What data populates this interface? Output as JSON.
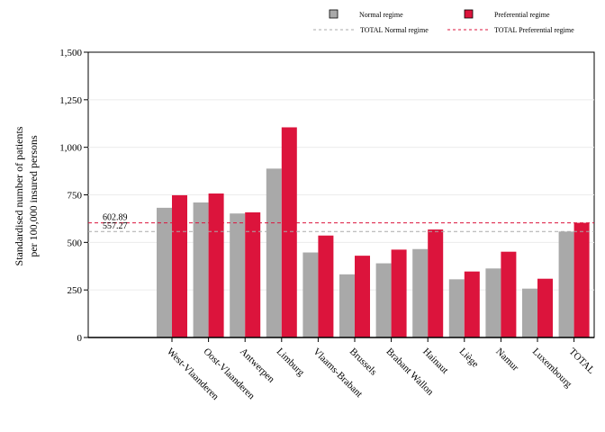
{
  "chart_data": {
    "type": "bar",
    "ylabel_lines": [
      "Standardised number of patients",
      "per 100,000 insured persons"
    ],
    "ylim": [
      0,
      1500
    ],
    "yticks": [
      0,
      250,
      500,
      750,
      1000,
      1250,
      1500
    ],
    "ytick_labels": [
      "0",
      "250",
      "500",
      "750",
      "1,000",
      "1,250",
      "1,500"
    ],
    "grid": true,
    "legend_position": "top",
    "categories": [
      "West-Vlaanderen",
      "Oost-Vlaanderen",
      "Antwerpen",
      "Limburg",
      "Vlaams-Brabant",
      "Brussels",
      "Brabant Wallon",
      "Hainaut",
      "Liège",
      "Namur",
      "Luxembourg",
      "TOTAL"
    ],
    "series": [
      {
        "name": "Normal regime",
        "color": "#a9a9a9",
        "values": [
          682,
          710,
          652,
          888,
          447,
          332,
          390,
          465,
          306,
          363,
          257,
          557
        ]
      },
      {
        "name": "Preferential regime",
        "color": "#dc143c",
        "values": [
          748,
          757,
          658,
          1105,
          536,
          430,
          462,
          568,
          347,
          451,
          309,
          603
        ]
      }
    ],
    "reference_lines": [
      {
        "name": "TOTAL Normal regime",
        "value": 557.27,
        "label": "557.27",
        "color": "#a9a9a9"
      },
      {
        "name": "TOTAL Preferential regime",
        "value": 602.89,
        "label": "602.89",
        "color": "#dc143c"
      }
    ]
  }
}
